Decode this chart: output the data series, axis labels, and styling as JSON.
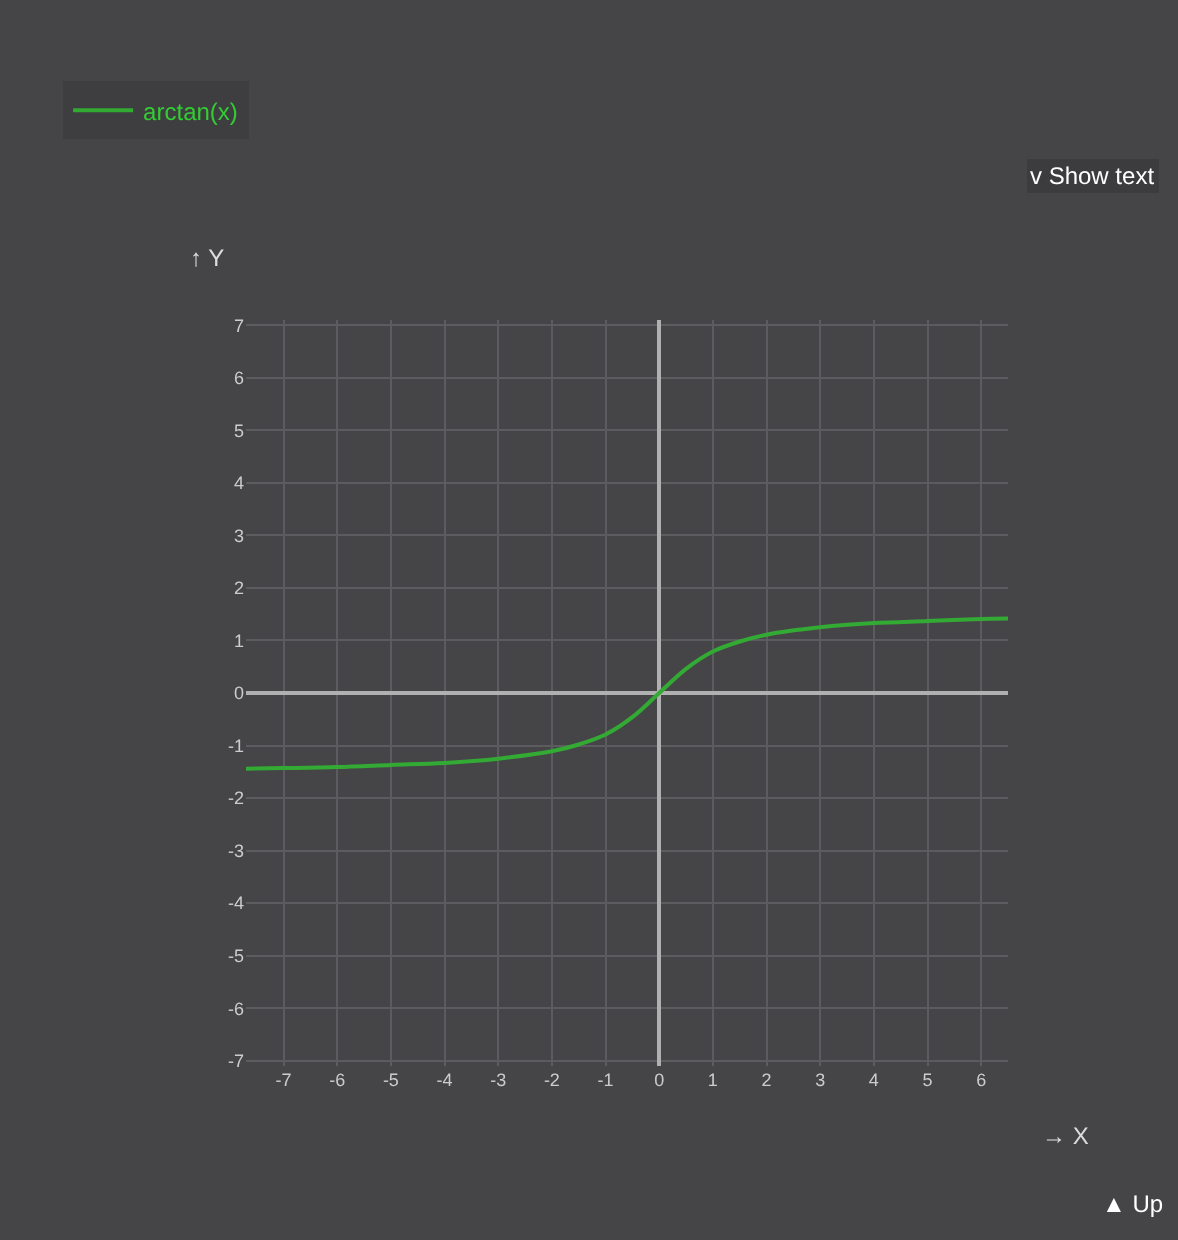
{
  "chart_data": {
    "type": "line",
    "xlabel": "→ X",
    "ylabel": "↑ Y",
    "annotations": [
      "v Show text",
      "▲ Up"
    ],
    "x": [
      -7.7,
      -7,
      -6,
      -5,
      -4,
      -3,
      -2,
      -1.5,
      -1,
      -0.5,
      0,
      0.5,
      1,
      1.5,
      2,
      3,
      4,
      5,
      6,
      6.5
    ],
    "series": [
      {
        "name": "arctan(x)",
        "color": "#33aa33",
        "values": [
          -1.44,
          -1.43,
          -1.41,
          -1.37,
          -1.33,
          -1.25,
          -1.11,
          -0.98,
          -0.79,
          -0.46,
          0,
          0.46,
          0.79,
          0.98,
          1.11,
          1.25,
          1.33,
          1.37,
          1.41,
          1.42
        ]
      }
    ],
    "xlim": [
      -7.7,
      6.5
    ],
    "ylim": [
      -7.1,
      7.1
    ],
    "xticks": [
      -7,
      -6,
      -5,
      -4,
      -3,
      -2,
      -1,
      0,
      1,
      2,
      3,
      4,
      5,
      6
    ],
    "yticks": [
      -7,
      -6,
      -5,
      -4,
      -3,
      -2,
      -1,
      0,
      1,
      2,
      3,
      4,
      5,
      6,
      7
    ],
    "grid": true,
    "legend": "top left",
    "marker": "none",
    "line_style": "solid"
  }
}
